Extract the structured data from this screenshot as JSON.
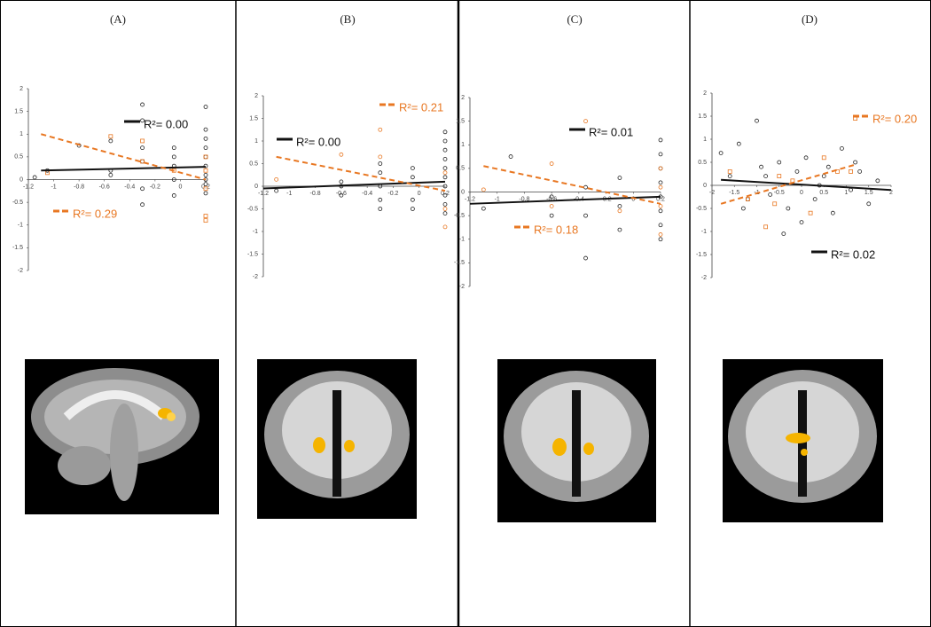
{
  "chart_data": [
    {
      "type": "scatter",
      "title": "(A)",
      "xlim": [
        -1.2,
        0.2
      ],
      "ylim": [
        -2,
        2
      ],
      "xticks": [
        -1.2,
        -1,
        -0.8,
        -0.6,
        -0.4,
        -0.2,
        0,
        0.2
      ],
      "yticks": [
        -2,
        -1.5,
        -1,
        -0.5,
        0,
        0.5,
        1,
        1.5,
        2
      ],
      "series": [
        {
          "color": "#222222",
          "marker": "circle",
          "x": [
            -1.15,
            -1.05,
            -0.8,
            -0.55,
            -0.55,
            -0.55,
            -0.3,
            -0.3,
            -0.3,
            -0.3,
            -0.3,
            -0.3,
            -0.05,
            -0.05,
            -0.05,
            -0.05,
            -0.05,
            0.2,
            0.2,
            0.2,
            0.2,
            0.2,
            0.2,
            0.2,
            0.2,
            0.2,
            0.2
          ],
          "y": [
            0.05,
            0.2,
            0.75,
            0.2,
            0.85,
            0.1,
            1.65,
            1.3,
            0.7,
            0.4,
            -0.2,
            -0.55,
            0.7,
            0.5,
            0.3,
            0,
            -0.35,
            1.6,
            1.1,
            0.9,
            0.7,
            0.5,
            0.3,
            0.1,
            -0.1,
            -0.3,
            0
          ]
        },
        {
          "color": "#e87722",
          "marker": "square",
          "x": [
            -1.05,
            -0.55,
            -0.3,
            -0.3,
            -0.05,
            0.2,
            0.2,
            0.2,
            0.2,
            0.2
          ],
          "y": [
            0.15,
            0.95,
            0.85,
            0.4,
            0.2,
            0.5,
            0.2,
            -0.2,
            -0.8,
            -0.9
          ]
        }
      ],
      "fits": [
        {
          "color": "#111111",
          "dash": false,
          "x": [
            -1.1,
            0.2
          ],
          "y": [
            0.2,
            0.28
          ],
          "label": "R²= 0.00"
        },
        {
          "color": "#e87722",
          "dash": true,
          "x": [
            -1.1,
            0.2
          ],
          "y": [
            1.0,
            0.0
          ],
          "label": "R²= 0.29"
        }
      ]
    },
    {
      "type": "scatter",
      "title": "(B)",
      "xlim": [
        -1.2,
        0.2
      ],
      "ylim": [
        -2,
        2
      ],
      "xticks": [
        -1.2,
        -1,
        -0.8,
        -0.6,
        -0.4,
        -0.2,
        0,
        0.2
      ],
      "yticks": [
        -2,
        -1.5,
        -1,
        -0.5,
        0,
        0.5,
        1,
        1.5,
        2
      ],
      "series": [
        {
          "color": "#222222",
          "marker": "circle",
          "x": [
            -1.1,
            -0.6,
            -0.6,
            -0.6,
            -0.3,
            -0.3,
            -0.3,
            -0.3,
            -0.3,
            -0.05,
            -0.05,
            -0.05,
            -0.05,
            0.2,
            0.2,
            0.2,
            0.2,
            0.2,
            0.2,
            0.2,
            0.2,
            0.2,
            0.2
          ],
          "y": [
            -0.1,
            0.1,
            0,
            -0.2,
            0.5,
            0.3,
            0,
            -0.3,
            -0.5,
            0.4,
            0.2,
            -0.3,
            -0.5,
            1.2,
            1.0,
            0.8,
            0.6,
            0.4,
            0.2,
            0,
            -0.2,
            -0.4,
            -0.6
          ]
        },
        {
          "color": "#e87722",
          "marker": "circle",
          "x": [
            -1.1,
            -0.6,
            -0.3,
            -0.3,
            0.2,
            0.2,
            0.2
          ],
          "y": [
            0.15,
            0.7,
            1.25,
            0.65,
            0.3,
            -0.5,
            -0.9
          ]
        }
      ],
      "fits": [
        {
          "color": "#111111",
          "dash": false,
          "x": [
            -1.2,
            0.2
          ],
          "y": [
            -0.05,
            0.1
          ],
          "label": "R²= 0.00"
        },
        {
          "color": "#e87722",
          "dash": true,
          "x": [
            -1.1,
            0.2
          ],
          "y": [
            0.65,
            -0.1
          ],
          "label": "R²= 0.21"
        }
      ]
    },
    {
      "type": "scatter",
      "title": "(C)",
      "xlim": [
        -1.2,
        0.2
      ],
      "ylim": [
        -2,
        2
      ],
      "xticks": [
        -1.2,
        -1,
        -0.8,
        -0.6,
        -0.4,
        -0.2,
        0,
        0.2
      ],
      "yticks": [
        -2,
        -1.5,
        -1,
        -0.5,
        0,
        0.5,
        1,
        1.5,
        2
      ],
      "series": [
        {
          "color": "#222222",
          "marker": "circle",
          "x": [
            -1.1,
            -0.9,
            -0.6,
            -0.6,
            -0.35,
            -0.35,
            -0.35,
            -0.1,
            -0.1,
            -0.1,
            0.2,
            0.2,
            0.2,
            0.2,
            0.2,
            0.2,
            0.2,
            0.2
          ],
          "y": [
            -0.35,
            0.75,
            -0.1,
            -0.5,
            0.1,
            -0.5,
            -1.4,
            0.3,
            -0.3,
            -0.8,
            1.1,
            0.8,
            0.5,
            0.2,
            -0.1,
            -0.4,
            -0.7,
            -1.0
          ]
        },
        {
          "color": "#e87722",
          "marker": "circle",
          "x": [
            -1.1,
            -0.6,
            -0.6,
            -0.35,
            -0.1,
            0.2,
            0.2,
            0.2,
            0.2
          ],
          "y": [
            0.05,
            0.6,
            -0.3,
            1.5,
            -0.4,
            0.5,
            0.1,
            -0.3,
            -0.9
          ]
        }
      ],
      "fits": [
        {
          "color": "#111111",
          "dash": false,
          "x": [
            -1.2,
            0.2
          ],
          "y": [
            -0.25,
            -0.1
          ],
          "label": "R²= 0.01"
        },
        {
          "color": "#e87722",
          "dash": true,
          "x": [
            -1.1,
            0.2
          ],
          "y": [
            0.55,
            -0.25
          ],
          "label": "R²= 0.18"
        }
      ]
    },
    {
      "type": "scatter",
      "title": "(D)",
      "xlim": [
        -2,
        2
      ],
      "ylim": [
        -2,
        2
      ],
      "xticks": [
        -2,
        -1.5,
        -1,
        -0.5,
        0,
        0.5,
        1,
        1.5,
        2
      ],
      "yticks": [
        -2,
        -1.5,
        -1,
        -0.5,
        0,
        0.5,
        1,
        1.5,
        2
      ],
      "series": [
        {
          "color": "#222222",
          "marker": "circle",
          "x": [
            -1.8,
            -1.6,
            -1.4,
            -1.2,
            -1.0,
            -0.9,
            -0.7,
            -0.5,
            -0.3,
            -0.1,
            0.1,
            0.3,
            0.5,
            0.7,
            0.9,
            1.1,
            1.3,
            1.5,
            1.7,
            -1.3,
            -0.8,
            0.0,
            0.6,
            1.2,
            -0.4,
            0.4
          ],
          "y": [
            0.7,
            0.2,
            0.9,
            -0.3,
            1.4,
            0.4,
            -0.2,
            0.5,
            -0.5,
            0.3,
            0.6,
            -0.3,
            0.2,
            -0.6,
            0.8,
            -0.1,
            0.3,
            -0.4,
            0.1,
            -0.5,
            0.2,
            -0.8,
            0.4,
            0.5,
            -1.05,
            0.0
          ]
        },
        {
          "color": "#e87722",
          "marker": "square",
          "x": [
            -1.6,
            -1.2,
            -0.8,
            -0.5,
            -0.2,
            0.2,
            0.5,
            0.8,
            1.1,
            1.2,
            -0.6
          ],
          "y": [
            0.3,
            -0.3,
            -0.9,
            0.2,
            0.1,
            -0.6,
            0.6,
            0.3,
            0.3,
            1.45,
            -0.4
          ]
        }
      ],
      "fits": [
        {
          "color": "#111111",
          "dash": false,
          "x": [
            -1.8,
            2
          ],
          "y": [
            0.12,
            -0.1
          ],
          "label": "R²= 0.02"
        },
        {
          "color": "#e87722",
          "dash": true,
          "x": [
            -1.8,
            1.2
          ],
          "y": [
            -0.4,
            0.45
          ],
          "label": "R²= 0.20"
        }
      ]
    }
  ]
}
